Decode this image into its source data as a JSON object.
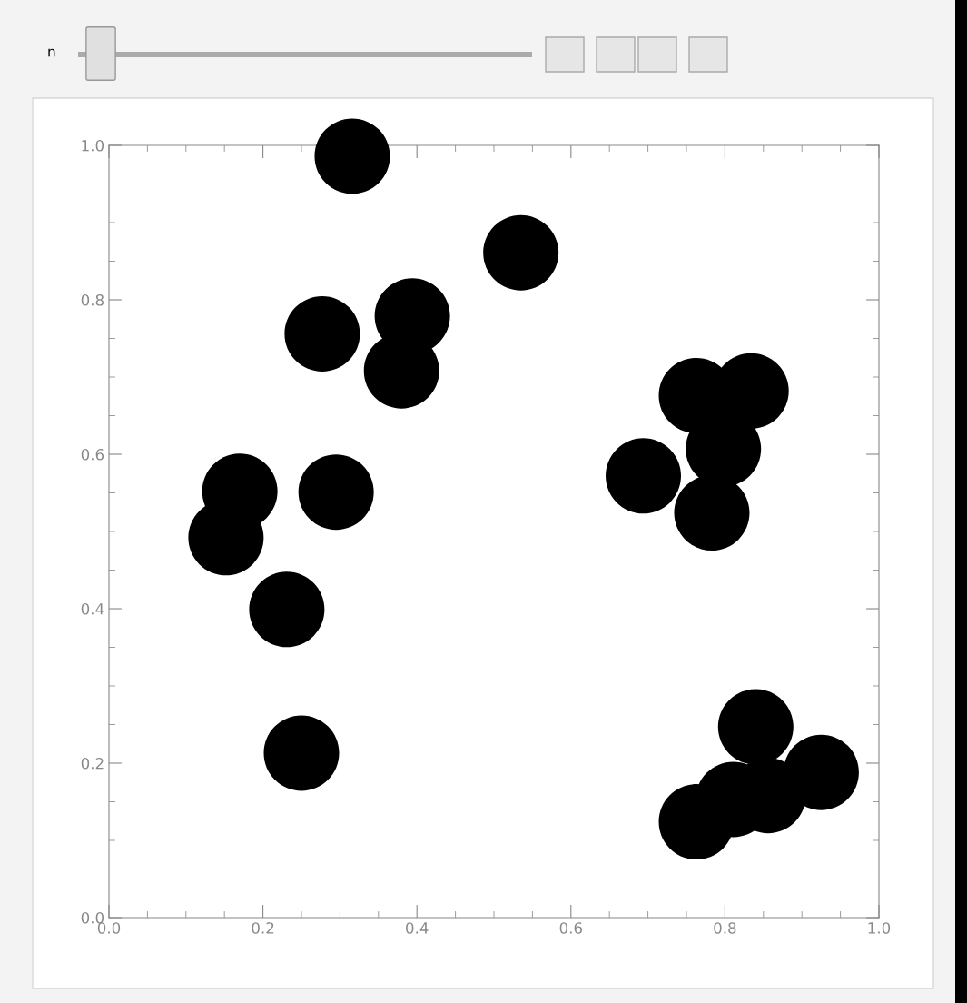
{
  "chart_data": {
    "type": "scatter",
    "x": [
      0.316,
      0.535,
      0.394,
      0.277,
      0.38,
      0.17,
      0.295,
      0.152,
      0.231,
      0.25,
      0.763,
      0.834,
      0.798,
      0.694,
      0.783,
      0.84,
      0.925,
      0.856,
      0.811,
      0.763
    ],
    "values": [
      0.986,
      0.861,
      0.779,
      0.756,
      0.708,
      0.552,
      0.551,
      0.492,
      0.399,
      0.213,
      0.676,
      0.682,
      0.607,
      0.572,
      0.524,
      0.247,
      0.188,
      0.158,
      0.153,
      0.124
    ],
    "color": "#000000",
    "marker": "circle",
    "xlim": [
      0,
      1
    ],
    "ylim": [
      0,
      1
    ],
    "xticks": [
      {
        "value": 0,
        "label": "0.0"
      },
      {
        "value": 0.2,
        "label": "0.2"
      },
      {
        "value": 0.4,
        "label": "0.4"
      },
      {
        "value": 0.6,
        "label": "0.6"
      },
      {
        "value": 0.8,
        "label": "0.8"
      },
      {
        "value": 1,
        "label": "1.0"
      }
    ],
    "yticks": [
      {
        "value": 0,
        "label": "0.0"
      },
      {
        "value": 0.2,
        "label": "0.2"
      },
      {
        "value": 0.4,
        "label": "0.4"
      },
      {
        "value": 0.6,
        "label": "0.6"
      },
      {
        "value": 0.8,
        "label": "0.8"
      },
      {
        "value": 1,
        "label": "1.0"
      }
    ],
    "grid": false,
    "legend": false,
    "annotations": [
      "n"
    ]
  }
}
